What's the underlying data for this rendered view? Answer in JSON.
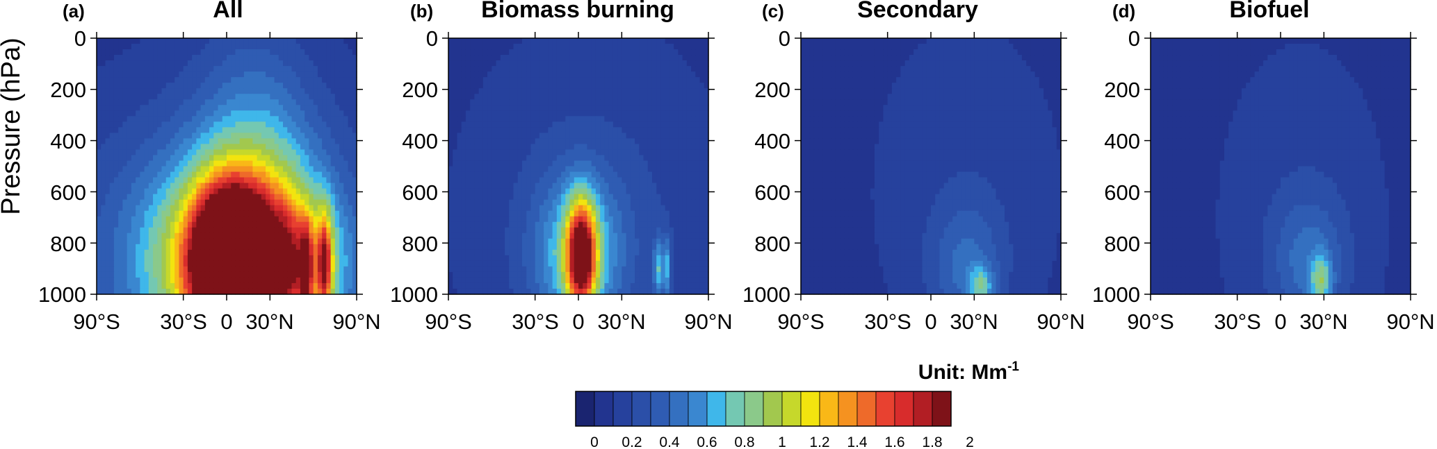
{
  "figure": {
    "ylabel": "Pressure (hPa)",
    "colorbar": {
      "unit_label": "Unit: Mm",
      "unit_exponent": "-1",
      "levels": 20,
      "range": [
        0,
        2.0
      ],
      "tick_labels": [
        "0",
        "0.2",
        "0.4",
        "0.6",
        "0.8",
        "1",
        "1.2",
        "1.4",
        "1.6",
        "1.8",
        "2"
      ],
      "colors": [
        "#1a2470",
        "#22348f",
        "#26419d",
        "#2b4fa8",
        "#2f5cb3",
        "#3470c0",
        "#3a87d0",
        "#3fb7ea",
        "#74c8b2",
        "#8bc98a",
        "#a2c84e",
        "#c6d82b",
        "#f2e40f",
        "#f9b817",
        "#f59220",
        "#ee6a2a",
        "#e84130",
        "#d82c2c",
        "#b21e24",
        "#7e1218"
      ]
    }
  },
  "chart_data": [
    {
      "type": "heatmap",
      "panel_tag": "(a)",
      "title": "All",
      "x_ticks": [
        {
          "value": -90,
          "label": "90°S"
        },
        {
          "value": -30,
          "label": "30°S"
        },
        {
          "value": 0,
          "label": "0"
        },
        {
          "value": 30,
          "label": "30°N"
        },
        {
          "value": 90,
          "label": "90°N"
        }
      ],
      "y_ticks": [
        0,
        200,
        400,
        600,
        800,
        1000
      ],
      "xlim": [
        -90,
        90
      ],
      "ylim": [
        1000,
        0
      ],
      "blobs": [
        {
          "lat": 0,
          "p": 850,
          "rlat": 105,
          "rp": 600,
          "amp": 0.45
        },
        {
          "lat": 20,
          "p": 780,
          "rlat": 40,
          "rp": 700,
          "amp": 0.55
        },
        {
          "lat": 5,
          "p": 880,
          "rlat": 55,
          "rp": 350,
          "amp": 1.0
        },
        {
          "lat": 0,
          "p": 870,
          "rlat": 22,
          "rp": 260,
          "amp": 1.7
        },
        {
          "lat": 40,
          "p": 880,
          "rlat": 35,
          "rp": 230,
          "amp": 0.55
        },
        {
          "lat": 68,
          "p": 880,
          "rlat": 5,
          "rp": 200,
          "amp": 0.9
        },
        {
          "lat": 55,
          "p": 900,
          "rlat": 4,
          "rp": 170,
          "amp": 0.7
        }
      ]
    },
    {
      "type": "heatmap",
      "panel_tag": "(b)",
      "title": "Biomass burning",
      "x_ticks": [
        {
          "value": -90,
          "label": "90°S"
        },
        {
          "value": -30,
          "label": "30°S"
        },
        {
          "value": 0,
          "label": "0"
        },
        {
          "value": 30,
          "label": "30°N"
        },
        {
          "value": 90,
          "label": "90°N"
        }
      ],
      "y_ticks": [
        0,
        200,
        400,
        600,
        800,
        1000
      ],
      "xlim": [
        -90,
        90
      ],
      "ylim": [
        1000,
        0
      ],
      "blobs": [
        {
          "lat": 10,
          "p": 700,
          "rlat": 90,
          "rp": 700,
          "amp": 0.18
        },
        {
          "lat": 0,
          "p": 850,
          "rlat": 30,
          "rp": 300,
          "amp": 0.6
        },
        {
          "lat": 2,
          "p": 850,
          "rlat": 10,
          "rp": 210,
          "amp": 1.5
        },
        {
          "lat": 55,
          "p": 900,
          "rlat": 3,
          "rp": 120,
          "amp": 0.5
        },
        {
          "lat": 61,
          "p": 900,
          "rlat": 3,
          "rp": 120,
          "amp": 0.5
        }
      ]
    },
    {
      "type": "heatmap",
      "panel_tag": "(c)",
      "title": "Secondary",
      "x_ticks": [
        {
          "value": -90,
          "label": "90°S"
        },
        {
          "value": -30,
          "label": "30°S"
        },
        {
          "value": 0,
          "label": "0"
        },
        {
          "value": 30,
          "label": "30°N"
        },
        {
          "value": 90,
          "label": "90°N"
        }
      ],
      "y_ticks": [
        0,
        200,
        400,
        600,
        800,
        1000
      ],
      "xlim": [
        -90,
        90
      ],
      "ylim": [
        1000,
        0
      ],
      "blobs": [
        {
          "lat": 25,
          "p": 600,
          "rlat": 70,
          "rp": 700,
          "amp": 0.12
        },
        {
          "lat": 25,
          "p": 900,
          "rlat": 25,
          "rp": 250,
          "amp": 0.3
        },
        {
          "lat": 35,
          "p": 970,
          "rlat": 8,
          "rp": 80,
          "amp": 0.45
        }
      ]
    },
    {
      "type": "heatmap",
      "panel_tag": "(d)",
      "title": "Biofuel",
      "x_ticks": [
        {
          "value": -90,
          "label": "90°S"
        },
        {
          "value": -30,
          "label": "30°S"
        },
        {
          "value": 0,
          "label": "0"
        },
        {
          "value": 30,
          "label": "30°N"
        },
        {
          "value": 90,
          "label": "90°N"
        }
      ],
      "y_ticks": [
        0,
        200,
        400,
        600,
        800,
        1000
      ],
      "xlim": [
        -90,
        90
      ],
      "ylim": [
        1000,
        0
      ],
      "blobs": [
        {
          "lat": 15,
          "p": 700,
          "rlat": 60,
          "rp": 700,
          "amp": 0.13
        },
        {
          "lat": 20,
          "p": 880,
          "rlat": 25,
          "rp": 250,
          "amp": 0.3
        },
        {
          "lat": 28,
          "p": 950,
          "rlat": 7,
          "rp": 100,
          "amp": 0.5
        }
      ]
    }
  ]
}
